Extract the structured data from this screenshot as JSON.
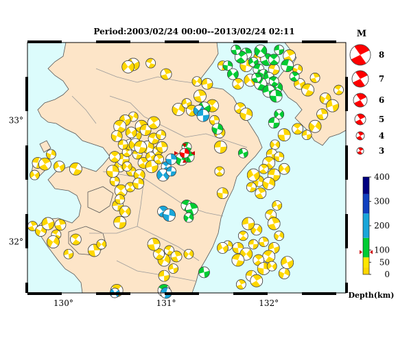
{
  "title": "Period:2003/02/24 00:00--2013/02/24 02:11",
  "axes": {
    "lon_labels": [
      {
        "lon": 130,
        "text": "130°"
      },
      {
        "lon": 131,
        "text": "131°"
      },
      {
        "lon": 132,
        "text": "132°"
      }
    ],
    "lat_labels": [
      {
        "lat": 33,
        "text": "33°"
      },
      {
        "lat": 32,
        "text": "32°"
      }
    ],
    "lon_range": [
      129.65,
      132.75
    ],
    "lat_range": [
      31.58,
      33.64
    ]
  },
  "magnitude_legend": {
    "title": "M",
    "items": [
      {
        "mag": 8,
        "label": "8"
      },
      {
        "mag": 7,
        "label": "7"
      },
      {
        "mag": 6,
        "label": "6"
      },
      {
        "mag": 5,
        "label": "5"
      },
      {
        "mag": 4,
        "label": "4"
      },
      {
        "mag": 3,
        "label": "3"
      }
    ]
  },
  "depth_scale": {
    "title": "Depth(km)",
    "ticks": [
      "400",
      "300",
      "200",
      "100",
      "50",
      "0"
    ],
    "segments": [
      {
        "from": 0,
        "to": 30,
        "color": "#ffd700"
      },
      {
        "from": 30,
        "to": 70,
        "color": "#ffe600"
      },
      {
        "from": 70,
        "to": 150,
        "color": "#00cc33"
      },
      {
        "from": 150,
        "to": 250,
        "color": "#19a6d9"
      },
      {
        "from": 250,
        "to": 330,
        "color": "#1040c0"
      },
      {
        "from": 330,
        "to": 400,
        "color": "#000080"
      }
    ],
    "marker_depth": 100
  },
  "colors": {
    "land": "#fde5c8",
    "sea": "#dcfcfc",
    "coast": "#555555",
    "border": "#999999",
    "main_event": "#ff0000",
    "shallow": "#ffd700",
    "mid": "#00cc33",
    "deep": "#19a6d9"
  },
  "main_event": {
    "lon": 131.18,
    "lat": 32.73,
    "depth": 10
  },
  "events": [
    [
      129.72,
      32.55,
      "y"
    ],
    [
      129.75,
      32.65,
      "y"
    ],
    [
      129.82,
      32.64,
      "y"
    ],
    [
      129.88,
      32.72,
      "y"
    ],
    [
      129.96,
      32.62,
      "y"
    ],
    [
      130.12,
      32.6,
      "y"
    ],
    [
      129.7,
      32.13,
      "y"
    ],
    [
      129.78,
      32.09,
      "y"
    ],
    [
      129.85,
      32.15,
      "y"
    ],
    [
      129.93,
      32.06,
      "y"
    ],
    [
      129.97,
      32.14,
      "y"
    ],
    [
      129.9,
      32.0,
      "y"
    ],
    [
      130.05,
      31.9,
      "y"
    ],
    [
      130.12,
      32.02,
      "y"
    ],
    [
      130.3,
      31.93,
      "y"
    ],
    [
      130.37,
      31.98,
      "y"
    ],
    [
      130.53,
      32.3,
      "y"
    ],
    [
      130.56,
      32.42,
      "y"
    ],
    [
      130.5,
      32.5,
      "y"
    ],
    [
      130.55,
      32.62,
      "y"
    ],
    [
      130.58,
      32.68,
      "y"
    ],
    [
      130.62,
      32.74,
      "y"
    ],
    [
      130.65,
      32.8,
      "y"
    ],
    [
      130.7,
      32.88,
      "y"
    ],
    [
      130.72,
      32.72,
      "y"
    ],
    [
      130.78,
      32.65,
      "y"
    ],
    [
      130.82,
      32.78,
      "y"
    ],
    [
      130.85,
      32.7,
      "y"
    ],
    [
      130.88,
      32.85,
      "y"
    ],
    [
      130.76,
      32.95,
      "y"
    ],
    [
      130.68,
      33.03,
      "y"
    ],
    [
      130.6,
      33.0,
      "y"
    ],
    [
      130.55,
      32.95,
      "y"
    ],
    [
      130.66,
      32.58,
      "y"
    ],
    [
      130.74,
      32.55,
      "y"
    ],
    [
      130.86,
      32.62,
      "y"
    ],
    [
      130.92,
      32.75,
      "y"
    ],
    [
      130.96,
      32.78,
      "y"
    ],
    [
      130.7,
      32.8,
      "y"
    ],
    [
      130.58,
      32.8,
      "y"
    ],
    [
      130.5,
      32.7,
      "y"
    ],
    [
      130.48,
      32.58,
      "y"
    ],
    [
      130.62,
      32.62,
      "y"
    ],
    [
      130.8,
      32.92,
      "y"
    ],
    [
      130.88,
      32.98,
      "y"
    ],
    [
      130.95,
      32.88,
      "y"
    ],
    [
      130.66,
      32.9,
      "y"
    ],
    [
      130.75,
      32.78,
      "y"
    ],
    [
      130.93,
      32.68,
      "y"
    ],
    [
      130.52,
      32.87,
      "y"
    ],
    [
      130.68,
      33.46,
      "y"
    ],
    [
      130.85,
      33.47,
      "y"
    ],
    [
      131.0,
      33.38,
      "y"
    ],
    [
      131.12,
      33.09,
      "y"
    ],
    [
      131.2,
      33.14,
      "y"
    ],
    [
      131.25,
      33.08,
      "y"
    ],
    [
      131.33,
      33.2,
      "y"
    ],
    [
      131.3,
      33.32,
      "y"
    ],
    [
      131.4,
      33.3,
      "y"
    ],
    [
      131.45,
      33.12,
      "y"
    ],
    [
      131.47,
      33.0,
      "y"
    ],
    [
      131.52,
      32.9,
      "y"
    ],
    [
      131.53,
      32.78,
      "y"
    ],
    [
      131.52,
      32.58,
      "y"
    ],
    [
      131.55,
      32.4,
      "y"
    ],
    [
      130.63,
      33.44,
      "y"
    ],
    [
      131.55,
      33.45,
      "y"
    ],
    [
      131.7,
      33.3,
      "y"
    ],
    [
      131.78,
      33.45,
      "y"
    ],
    [
      131.9,
      33.52,
      "y"
    ],
    [
      132.05,
      33.42,
      "y"
    ],
    [
      132.2,
      33.53,
      "y"
    ],
    [
      132.28,
      33.42,
      "y"
    ],
    [
      132.3,
      33.3,
      "y"
    ],
    [
      132.38,
      33.25,
      "y"
    ],
    [
      132.45,
      33.35,
      "y"
    ],
    [
      132.55,
      33.18,
      "y"
    ],
    [
      132.62,
      33.12,
      "y"
    ],
    [
      132.68,
      33.25,
      "y"
    ],
    [
      132.52,
      33.05,
      "y"
    ],
    [
      132.45,
      32.95,
      "y"
    ],
    [
      132.37,
      32.88,
      "y"
    ],
    [
      132.28,
      32.93,
      "y"
    ],
    [
      132.15,
      32.88,
      "y"
    ],
    [
      132.06,
      32.8,
      "y"
    ],
    [
      132.03,
      32.72,
      "y"
    ],
    [
      132.0,
      32.65,
      "y"
    ],
    [
      132.1,
      32.7,
      "y"
    ],
    [
      132.15,
      32.6,
      "y"
    ],
    [
      132.05,
      32.55,
      "y"
    ],
    [
      131.95,
      32.6,
      "y"
    ],
    [
      131.9,
      32.5,
      "y"
    ],
    [
      131.85,
      32.55,
      "y"
    ],
    [
      131.83,
      32.45,
      "y"
    ],
    [
      131.92,
      32.4,
      "y"
    ],
    [
      132.0,
      32.48,
      "y"
    ],
    [
      132.08,
      32.3,
      "y"
    ],
    [
      132.02,
      32.22,
      "y"
    ],
    [
      132.05,
      32.15,
      "y"
    ],
    [
      132.1,
      32.05,
      "y"
    ],
    [
      132.05,
      31.95,
      "y"
    ],
    [
      132.0,
      31.88,
      "y"
    ],
    [
      131.95,
      32.0,
      "y"
    ],
    [
      131.88,
      32.1,
      "y"
    ],
    [
      131.8,
      32.15,
      "y"
    ],
    [
      131.75,
      32.05,
      "y"
    ],
    [
      131.7,
      31.95,
      "y"
    ],
    [
      131.78,
      31.9,
      "y"
    ],
    [
      131.85,
      31.98,
      "y"
    ],
    [
      131.9,
      31.85,
      "y"
    ],
    [
      131.95,
      31.78,
      "y"
    ],
    [
      132.03,
      31.8,
      "y"
    ],
    [
      131.83,
      31.72,
      "y"
    ],
    [
      131.88,
      31.68,
      "y"
    ],
    [
      131.6,
      31.97,
      "y"
    ],
    [
      131.55,
      31.95,
      "y"
    ],
    [
      131.7,
      31.85,
      "y"
    ],
    [
      131.73,
      31.65,
      "y"
    ],
    [
      132.15,
      31.74,
      "y"
    ],
    [
      132.18,
      31.83,
      "y"
    ],
    [
      131.03,
      31.93,
      "y"
    ],
    [
      131.1,
      31.88,
      "y"
    ],
    [
      130.98,
      31.85,
      "y"
    ],
    [
      131.07,
      31.78,
      "y"
    ],
    [
      130.93,
      31.9,
      "y"
    ],
    [
      130.88,
      31.98,
      "y"
    ],
    [
      131.22,
      31.9,
      "y"
    ],
    [
      130.98,
      31.72,
      "y"
    ],
    [
      130.52,
      31.6,
      "y"
    ],
    [
      130.55,
      32.35,
      "y"
    ],
    [
      130.6,
      32.25,
      "y"
    ],
    [
      130.55,
      32.16,
      "y"
    ],
    [
      130.65,
      32.45,
      "y"
    ],
    [
      130.73,
      32.48,
      "y"
    ],
    [
      131.82,
      33.33,
      "y"
    ],
    [
      131.95,
      33.28,
      "y"
    ],
    [
      131.72,
      33.1,
      "y"
    ],
    [
      131.78,
      33.05,
      "y"
    ],
    [
      131.85,
      33.48,
      "g"
    ],
    [
      131.9,
      33.42,
      "g"
    ],
    [
      131.98,
      33.5,
      "g"
    ],
    [
      131.95,
      33.38,
      "g"
    ],
    [
      132.0,
      33.35,
      "g"
    ],
    [
      131.92,
      33.3,
      "g"
    ],
    [
      131.88,
      33.35,
      "g"
    ],
    [
      132.08,
      33.27,
      "g"
    ],
    [
      132.0,
      33.24,
      "g"
    ],
    [
      132.05,
      33.32,
      "g"
    ],
    [
      131.78,
      33.55,
      "g"
    ],
    [
      131.92,
      33.57,
      "g"
    ],
    [
      132.1,
      33.58,
      "g"
    ],
    [
      132.05,
      33.5,
      "g"
    ],
    [
      132.07,
      33.2,
      "g"
    ],
    [
      132.1,
      33.05,
      "g"
    ],
    [
      132.05,
      32.98,
      "g"
    ],
    [
      131.73,
      33.52,
      "g"
    ],
    [
      131.6,
      33.45,
      "g"
    ],
    [
      131.65,
      33.38,
      "g"
    ],
    [
      132.18,
      33.45,
      "g"
    ],
    [
      132.25,
      33.36,
      "g"
    ],
    [
      131.5,
      32.93,
      "g"
    ],
    [
      131.37,
      33.1,
      "g"
    ],
    [
      131.2,
      32.78,
      "g"
    ],
    [
      131.22,
      32.7,
      "g"
    ],
    [
      131.15,
      32.68,
      "g"
    ],
    [
      131.75,
      32.73,
      "g"
    ],
    [
      131.2,
      32.3,
      "g"
    ],
    [
      131.25,
      32.27,
      "g"
    ],
    [
      131.22,
      32.2,
      "g"
    ],
    [
      131.37,
      31.75,
      "g"
    ],
    [
      130.98,
      31.6,
      "g"
    ],
    [
      131.68,
      33.58,
      "g"
    ],
    [
      131.32,
      33.08,
      "b"
    ],
    [
      131.36,
      33.04,
      "b"
    ],
    [
      131.0,
      32.62,
      "b"
    ],
    [
      131.05,
      32.68,
      "b"
    ],
    [
      130.97,
      32.55,
      "b"
    ],
    [
      131.05,
      32.58,
      "b"
    ],
    [
      130.97,
      32.25,
      "b"
    ],
    [
      131.03,
      32.22,
      "b"
    ],
    [
      130.5,
      31.58,
      "b"
    ],
    [
      131.0,
      31.58,
      "b"
    ]
  ]
}
